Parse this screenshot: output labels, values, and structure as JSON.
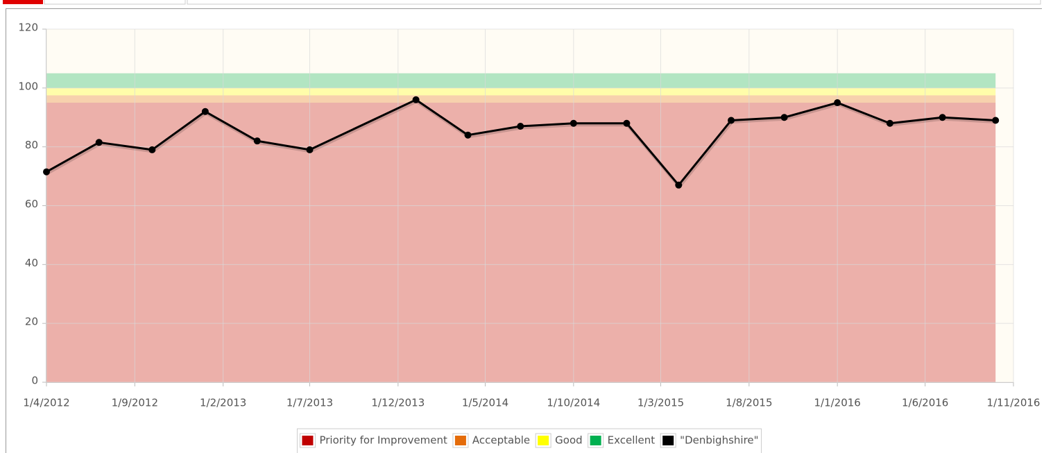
{
  "chart_data": {
    "type": "line",
    "x": [
      "1/4/2012",
      "1/7/2012",
      "1/10/2012",
      "1/1/2013",
      "1/4/2013",
      "1/7/2013",
      "1/1/2014",
      "1/4/2014",
      "1/7/2014",
      "1/10/2014",
      "1/1/2015",
      "1/4/2015",
      "1/7/2015",
      "1/10/2015",
      "1/1/2016",
      "1/4/2016",
      "1/7/2016",
      "1/10/2016"
    ],
    "series": [
      {
        "name": "\"Denbighshire\"",
        "color": "#000000",
        "values": [
          71.5,
          81.5,
          79,
          92,
          82,
          79,
          96,
          84,
          87,
          88,
          88,
          67,
          89,
          90,
          95,
          88,
          90,
          89
        ]
      }
    ],
    "bands": [
      {
        "name": "Priority for Improvement",
        "color": "#c00000",
        "range": [
          0,
          95
        ]
      },
      {
        "name": "Acceptable",
        "color": "#e46c0a",
        "range": [
          95,
          97.5
        ]
      },
      {
        "name": "Good",
        "color": "#ffff00",
        "range": [
          97.5,
          100
        ]
      },
      {
        "name": "Excellent",
        "color": "#00b050",
        "range": [
          100,
          105
        ]
      }
    ],
    "band_x": [
      "1/4/2012",
      "1/10/2016"
    ],
    "xlim": [
      "1/4/2012",
      "1/11/2016"
    ],
    "xticks": [
      "1/4/2012",
      "1/9/2012",
      "1/2/2013",
      "1/7/2013",
      "1/12/2013",
      "1/5/2014",
      "1/10/2014",
      "1/3/2015",
      "1/8/2015",
      "1/1/2016",
      "1/6/2016",
      "1/11/2016"
    ],
    "ylim": [
      0,
      120
    ],
    "yticks": [
      0,
      20,
      40,
      60,
      80,
      100,
      120
    ],
    "grid": true,
    "legend": "bottom"
  }
}
